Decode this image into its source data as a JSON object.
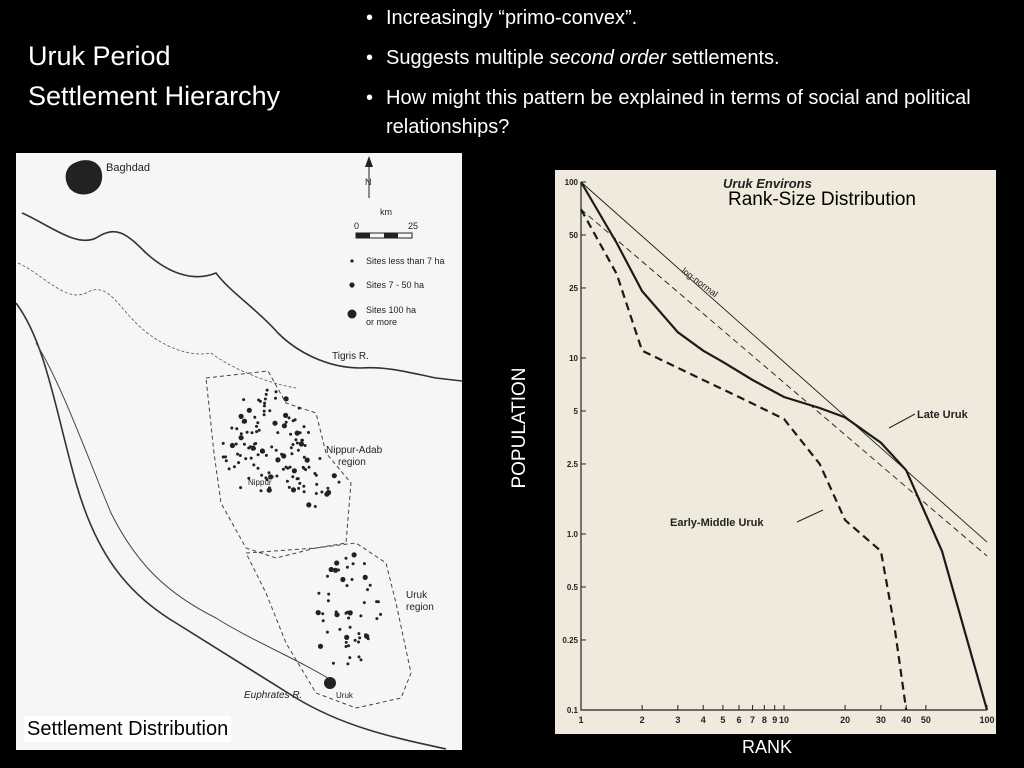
{
  "slide": {
    "title_line1": "Uruk Period",
    "title_line2": "Settlement Hierarchy",
    "bullets": [
      {
        "pre": "Increasingly ",
        "emph": "",
        "post": "“primo-convex”."
      },
      {
        "pre": "Suggests multiple ",
        "emph": "second order",
        "post": " settlements."
      },
      {
        "pre": "How might this pattern be explained in terms of social and political relationships?",
        "emph": "",
        "post": ""
      }
    ],
    "bullet_glyph": "•"
  },
  "map": {
    "caption": "Settlement Distribution",
    "labels": {
      "baghdad": "Baghdad",
      "north": "N",
      "km": "km",
      "scale_start": "0",
      "scale_end": "25",
      "legend_small": "Sites less than 7 ha",
      "legend_mid": "Sites 7 - 50 ha",
      "legend_large_1": "Sites 100 ha",
      "legend_large_2": "or more",
      "tigris": "Tigris R.",
      "nippur_region_1": "Nippur-Adab",
      "nippur_region_2": "region",
      "nippur": "Nippur",
      "uruk_region_1": "Uruk",
      "uruk_region_2": "region",
      "uruk": "Uruk",
      "euphrates": "Euphrates R."
    }
  },
  "chart_data": {
    "type": "line",
    "title": "Uruk Environs",
    "annotation": "Rank-Size Distribution",
    "xlabel": "RANK",
    "ylabel": "POPULATION",
    "x_scale": "log",
    "y_scale": "log",
    "xlim": [
      1,
      100
    ],
    "ylim": [
      0.1,
      100
    ],
    "x_ticks": [
      1,
      2,
      3,
      4,
      5,
      6,
      7,
      8,
      9,
      10,
      20,
      30,
      40,
      50,
      100
    ],
    "x_tick_labels": [
      "1",
      "2",
      "3",
      "4",
      "5",
      "6",
      "7",
      "8",
      "9",
      "10",
      "20",
      "30",
      "40",
      "50",
      "100"
    ],
    "y_ticks": [
      100,
      50,
      25,
      10,
      5,
      2.5,
      1.0,
      0.5,
      0.25,
      0.1
    ],
    "y_tick_labels": [
      "100",
      "50",
      "25",
      "10",
      "5",
      "2.5",
      "1.0",
      "0.5",
      "0.25",
      "0.1"
    ],
    "series": [
      {
        "name": "Late Uruk",
        "style": "solid-thick",
        "x": [
          1,
          1.5,
          2,
          3,
          4,
          5,
          7,
          10,
          15,
          20,
          30,
          40,
          60,
          100
        ],
        "y": [
          100,
          45,
          24,
          14,
          11,
          9.5,
          7.5,
          6,
          5.2,
          4.6,
          3.3,
          2.3,
          0.8,
          0.1
        ]
      },
      {
        "name": "Early-Middle Uruk",
        "style": "dashed-thick",
        "x": [
          1,
          1.5,
          2,
          4,
          6,
          10,
          15,
          20,
          30,
          35,
          40
        ],
        "y": [
          70,
          30,
          11,
          7.5,
          6,
          4.5,
          2.5,
          1.2,
          0.8,
          0.3,
          0.1
        ]
      },
      {
        "name": "log-normal",
        "style": "solid-thin",
        "x": [
          1,
          100
        ],
        "y": [
          100,
          0.9
        ]
      },
      {
        "name": "",
        "style": "dashed-thin",
        "x": [
          1,
          100
        ],
        "y": [
          70,
          0.75
        ]
      }
    ]
  }
}
